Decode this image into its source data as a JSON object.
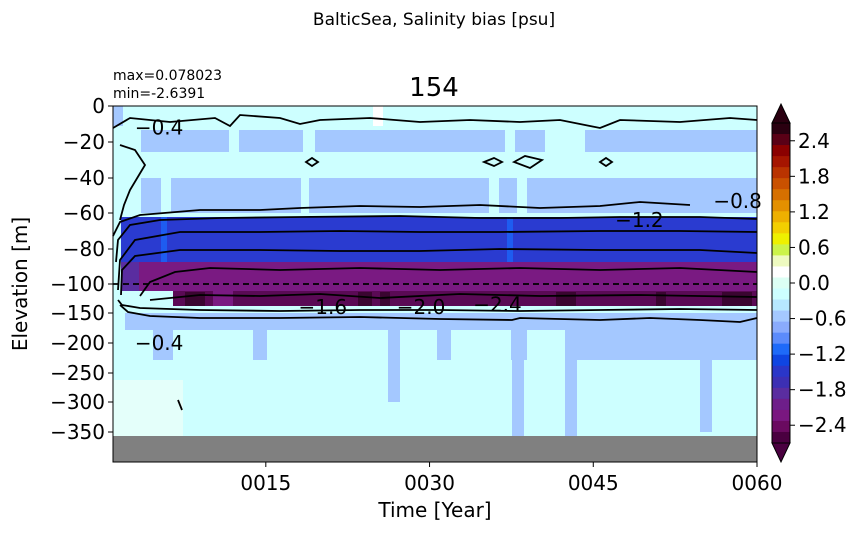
{
  "suptitle": "BalticSea, Salinity bias [psu]",
  "chart_data": {
    "type": "heatmap",
    "title": "154",
    "stats": {
      "max": "max=0.078023",
      "min": "min=-2.6391"
    },
    "xlabel": "Time [Year]",
    "ylabel": "Elevation [m]",
    "xlim": [
      1,
      60
    ],
    "x_ticks": [
      {
        "v": 15,
        "label": "0015"
      },
      {
        "v": 30,
        "label": "0030"
      },
      {
        "v": 45,
        "label": "0045"
      },
      {
        "v": 60,
        "label": "0060"
      }
    ],
    "y_ticks": [
      {
        "label": "0"
      },
      {
        "label": "−20"
      },
      {
        "label": "−40"
      },
      {
        "label": "−60"
      },
      {
        "label": "−80"
      },
      {
        "label": "−100"
      },
      {
        "label": "−150"
      },
      {
        "label": "−200"
      },
      {
        "label": "−250"
      },
      {
        "label": "−300"
      },
      {
        "label": "−350"
      }
    ],
    "y_levels_m": [
      0,
      -20,
      -40,
      -60,
      -80,
      -100,
      -150,
      -200,
      -250,
      -300,
      -350,
      -400
    ],
    "colorbar": {
      "range": [
        -2.7,
        2.7
      ],
      "extend": "both",
      "tick_labels": [
        "2.4",
        "1.8",
        "1.2",
        "0.6",
        "0.0",
        "−0.6",
        "−1.2",
        "−1.8",
        "−2.4"
      ],
      "tick_values": [
        2.4,
        1.8,
        1.2,
        0.6,
        0.0,
        -0.6,
        -1.2,
        -1.8,
        -2.4
      ],
      "colors": [
        "#2a0010",
        "#5a0016",
        "#8b0000",
        "#a51500",
        "#b93300",
        "#c95100",
        "#d67000",
        "#e39000",
        "#eeb000",
        "#f3cf00",
        "#eef000",
        "#ccf34a",
        "#eefac0",
        "#ffffff",
        "#dcfff4",
        "#cdffff",
        "#b7e8ff",
        "#a4c8ff",
        "#8aabfd",
        "#5c8bfb",
        "#1e6af9",
        "#0f45e2",
        "#2a36c8",
        "#3c2fb4",
        "#5a2da0",
        "#6e1e8a",
        "#7a1780",
        "#6a0a60",
        "#4a0040"
      ]
    },
    "contour_labels": [
      {
        "text": "−0.4",
        "x": 3,
        "y": -12
      },
      {
        "text": "−0.8",
        "x": 56,
        "y": -53
      },
      {
        "text": "−1.2",
        "x": 47,
        "y": -64
      },
      {
        "text": "−1.6",
        "x": 18,
        "y": -140
      },
      {
        "text": "−2.0",
        "x": 27,
        "y": -140
      },
      {
        "text": "−2.4",
        "x": 34,
        "y": -135
      },
      {
        "text": "−0.4",
        "x": 3,
        "y": -200
      }
    ],
    "mask_below_m": -356
  }
}
